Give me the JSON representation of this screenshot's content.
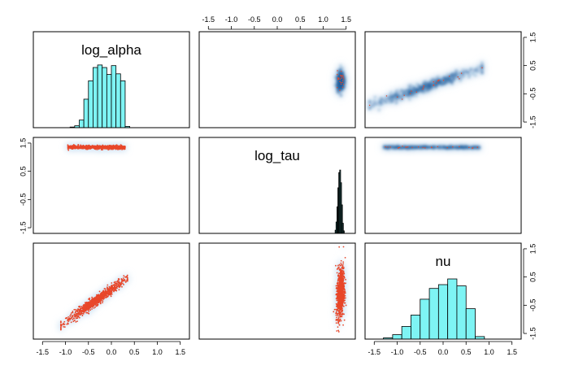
{
  "chart_data": {
    "type": "pairs",
    "variables": [
      "log_alpha",
      "log_tau",
      "nu"
    ],
    "axis_range": [
      -1.7,
      1.7
    ],
    "tick_values": [
      -1.5,
      -1.0,
      -0.5,
      0.0,
      0.5,
      1.0,
      1.5
    ],
    "x_tick_labels": [
      "-1.5",
      "-1.0",
      "-0.5",
      "0.0",
      "0.5",
      "1.0",
      "1.5"
    ],
    "y_tick_labels": [
      "-1.5",
      "-0.5",
      "0.5",
      "1.5"
    ],
    "y_tick_values": [
      -1.5,
      -0.5,
      0.5,
      1.5
    ],
    "colors": {
      "hist_fill": "#7ef4f4",
      "hist_fill_dark": "#2f6f6f",
      "points": "#e8472a",
      "density_core": "#1f5f9e",
      "density_halo": "#c6dbef",
      "axis": "#000000"
    },
    "histograms": [
      {
        "variable": "log_alpha",
        "bin_edges": [
          -0.9,
          -0.8,
          -0.7,
          -0.6,
          -0.5,
          -0.4,
          -0.3,
          -0.2,
          -0.1,
          0.0,
          0.1,
          0.2,
          0.3,
          0.4
        ],
        "relative_heights": [
          0.01,
          0.03,
          0.12,
          0.45,
          0.74,
          0.95,
          0.99,
          0.95,
          0.84,
          0.98,
          0.85,
          0.74,
          0.02
        ],
        "fill": "#7ef4f4"
      },
      {
        "variable": "log_tau",
        "bin_edges": [
          1.26,
          1.28,
          1.3,
          1.32,
          1.34,
          1.36,
          1.38,
          1.4,
          1.42,
          1.44,
          1.46
        ],
        "relative_heights": [
          0.05,
          0.18,
          0.42,
          0.72,
          0.96,
          1.0,
          0.8,
          0.45,
          0.16,
          0.04
        ],
        "fill": "#2f6f6f"
      },
      {
        "variable": "nu",
        "bin_edges": [
          -1.3,
          -1.1,
          -0.9,
          -0.7,
          -0.5,
          -0.3,
          -0.1,
          0.1,
          0.3,
          0.5,
          0.7,
          0.9
        ],
        "relative_heights": [
          0.02,
          0.07,
          0.2,
          0.38,
          0.63,
          0.8,
          0.86,
          0.95,
          0.84,
          0.48,
          0.04
        ],
        "fill": "#7ef4f4"
      }
    ],
    "scatter_panels": [
      {
        "row": 1,
        "col": 0,
        "x": "log_alpha",
        "y": "log_tau",
        "style": "points",
        "x_range": [
          -0.95,
          0.3
        ],
        "y_center": 1.35,
        "y_spread": 0.03
      },
      {
        "row": 2,
        "col": 0,
        "x": "log_alpha",
        "y": "nu",
        "style": "points",
        "x_range": [
          -1.0,
          0.3
        ],
        "slope": 1.15,
        "intercept": 0.05
      },
      {
        "row": 2,
        "col": 1,
        "x": "log_tau",
        "y": "nu",
        "style": "points",
        "x_center": 1.38,
        "x_spread": 0.04,
        "y_range": [
          -1.0,
          0.9
        ]
      },
      {
        "row": 0,
        "col": 1,
        "x": "log_tau",
        "y": "log_alpha",
        "style": "density",
        "x_center": 1.38,
        "x_spread": 0.04,
        "y_range": [
          -0.4,
          0.3
        ]
      },
      {
        "row": 0,
        "col": 2,
        "x": "nu",
        "y": "log_alpha",
        "style": "density",
        "x_range": [
          -1.5,
          0.8
        ],
        "slope": 0.55,
        "intercept": -0.05
      },
      {
        "row": 1,
        "col": 2,
        "x": "nu",
        "y": "log_tau",
        "style": "density",
        "x_range": [
          -1.3,
          0.8
        ],
        "y_center": 1.35,
        "y_spread": 0.025
      }
    ]
  }
}
